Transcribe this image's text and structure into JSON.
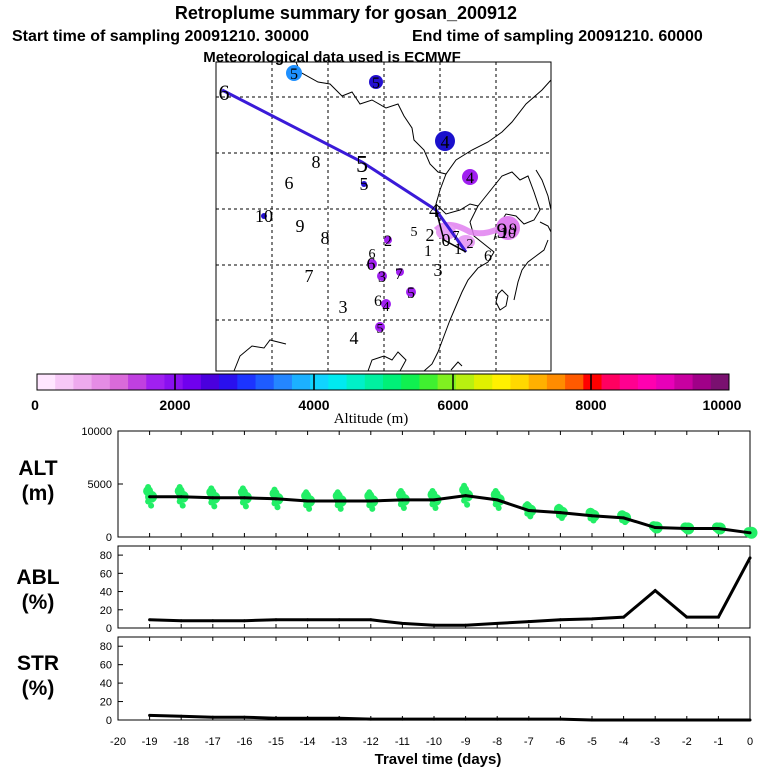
{
  "header": {
    "title": "Retroplume summary for gosan_200912",
    "start_label": "Start time of sampling 20091210. 30000",
    "end_label": "End time of sampling 20091210. 60000",
    "met_label": "Meteorological data used is ECMWF"
  },
  "colorbar": {
    "ticks": [
      "0",
      "2000",
      "4000",
      "6000",
      "8000",
      "10000"
    ],
    "label": "Altitude (m)",
    "colors": [
      "#ffe6ff",
      "#f7c8f7",
      "#eeaaee",
      "#e58ce5",
      "#da6ada",
      "#c040e0",
      "#a020f0",
      "#8a10f0",
      "#7000ee",
      "#4a00dd",
      "#2a10ee",
      "#1c34ff",
      "#1e5cff",
      "#2486ff",
      "#1cb0ff",
      "#10d4ff",
      "#00eaf0",
      "#00f0c8",
      "#00f0a0",
      "#00f078",
      "#10f050",
      "#40f030",
      "#80f020",
      "#b8f010",
      "#e0f000",
      "#fff000",
      "#ffd800",
      "#ffb000",
      "#ff8c00",
      "#ff5a00",
      "#ff0000",
      "#ff0060",
      "#ff0090",
      "#ff00b0",
      "#e800b8",
      "#c800a0",
      "#a00088",
      "#7a1070"
    ]
  },
  "map": {
    "trajectory_color": "#3a1ad8",
    "plume_color": "#e080f0",
    "day_labels": [
      "6",
      "5",
      "4",
      "3",
      "2",
      "1",
      "0",
      "8",
      "6",
      "5",
      "10",
      "9",
      "8",
      "7",
      "3",
      "4",
      "6",
      "7",
      "5",
      "2",
      "3",
      "1",
      "2",
      "6",
      "4",
      "5",
      "6",
      "7",
      "9",
      "10"
    ],
    "marker_labels": [
      "5",
      "5",
      "4",
      "4",
      "6",
      "5",
      "9"
    ]
  },
  "panels": {
    "alt_label": "ALT",
    "alt_unit": "(m)",
    "abl_label": "ABL",
    "abl_unit": "(%)",
    "str_label": "STR",
    "str_unit": "(%)",
    "xlabel": "Travel time (days)"
  },
  "chart_data": [
    {
      "type": "line",
      "name": "ALT",
      "title": "ALT (m)",
      "ylabel": "ALT (m)",
      "xlabel": "Travel time (days)",
      "ylim": [
        0,
        10000
      ],
      "yticks": [
        "0",
        "5000",
        "10000"
      ],
      "xlim": [
        -20,
        0
      ],
      "xticks": [
        "-20",
        "-19",
        "-18",
        "-17",
        "-16",
        "-15",
        "-14",
        "-13",
        "-12",
        "-11",
        "-10",
        "-9",
        "-8",
        "-7",
        "-6",
        "-5",
        "-4",
        "-3",
        "-2",
        "-1",
        "0"
      ],
      "x": [
        -19,
        -18,
        -17,
        -16,
        -15,
        -14,
        -13,
        -12,
        -11,
        -10,
        -9,
        -8,
        -7,
        -6,
        -5,
        -4,
        -3,
        -2,
        -1,
        0
      ],
      "values": [
        3800,
        3800,
        3700,
        3700,
        3600,
        3400,
        3400,
        3400,
        3500,
        3500,
        3900,
        3500,
        2500,
        2300,
        2000,
        1800,
        900,
        800,
        800,
        400
      ],
      "scatter_color": "#22ee66"
    },
    {
      "type": "line",
      "name": "ABL",
      "title": "ABL (%)",
      "ylabel": "ABL (%)",
      "ylim": [
        0,
        90
      ],
      "yticks": [
        "0",
        "20",
        "40",
        "60",
        "80"
      ],
      "x": [
        -19,
        -18,
        -17,
        -16,
        -15,
        -14,
        -13,
        -12,
        -11,
        -10,
        -9,
        -8,
        -7,
        -6,
        -5,
        -4,
        -3,
        -2,
        -1,
        0
      ],
      "values": [
        9,
        8,
        8,
        8,
        9,
        9,
        9,
        9,
        5,
        3,
        3,
        5,
        7,
        9,
        10,
        12,
        41,
        12,
        12,
        77
      ]
    },
    {
      "type": "line",
      "name": "STR",
      "title": "STR (%)",
      "ylabel": "STR (%)",
      "ylim": [
        0,
        90
      ],
      "yticks": [
        "0",
        "20",
        "40",
        "60",
        "80"
      ],
      "x": [
        -19,
        -18,
        -17,
        -16,
        -15,
        -14,
        -13,
        -12,
        -11,
        -10,
        -9,
        -8,
        -7,
        -6,
        -5,
        -4,
        -3,
        -2,
        -1,
        0
      ],
      "values": [
        5,
        4,
        3,
        3,
        2,
        2,
        2,
        1,
        1,
        1,
        1,
        1,
        1,
        1,
        0,
        0,
        0,
        0,
        0,
        0
      ]
    }
  ]
}
